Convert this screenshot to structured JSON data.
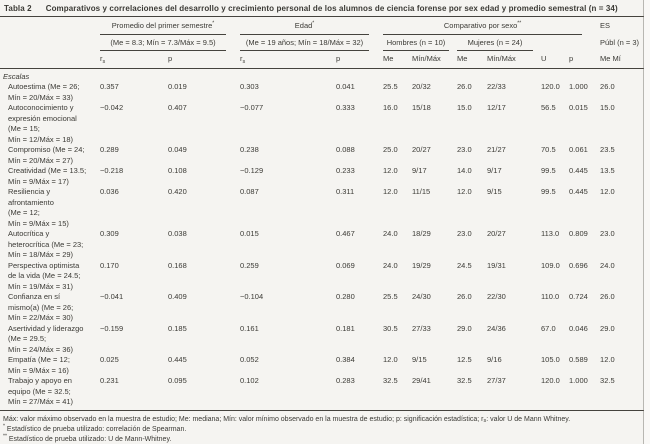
{
  "title": {
    "tag": "Tabla 2",
    "caption": "Comparativos y correlaciones del desarrollo y crecimiento personal de los alumnos de ciencia forense por sex edad y promedio semestral (n = 34)"
  },
  "header": {
    "group1": {
      "label": "Promedio del primer semestre",
      "sup": "*",
      "range": "(Me = 8.3; Mín = 7.3/Máx = 9.5)"
    },
    "group2": {
      "label": "Edad",
      "sup": "*",
      "range": "(Me = 19 años; Mín = 18/Máx = 32)"
    },
    "group3": {
      "label": "Comparativo por sexo",
      "sup": "**",
      "hombres": "Hombres (n = 10)",
      "mujeres": "Mujeres (n = 24)"
    },
    "group4": {
      "label": "ES",
      "sub": "Públ (n = 3)"
    },
    "cols": {
      "rs_base": "r",
      "rs_sub": "s",
      "p": "p",
      "me": "Me",
      "minmax": "Mín/Máx",
      "u": "U",
      "me_mi": "Me Mí"
    }
  },
  "body": {
    "section": "Escalas",
    "rows": [
      {
        "label": "Autoestima (Me = 26;\nMín = 20/Máx = 33)",
        "values": [
          "0.357",
          "0.019",
          "0.303",
          "0.041",
          "25.5",
          "20/32",
          "26.0",
          "22/33",
          "120.0",
          "1.000",
          "26.0"
        ]
      },
      {
        "label": "Autoconocimiento y\nexpresión emocional\n(Me = 15;\nMín = 12/Máx = 18)",
        "values": [
          "−0.042",
          "0.407",
          "−0.077",
          "0.333",
          "16.0",
          "15/18",
          "15.0",
          "12/17",
          "56.5",
          "0.015",
          "15.0"
        ]
      },
      {
        "label": "Compromiso (Me = 24;\nMín = 20/Máx = 27)",
        "values": [
          "0.289",
          "0.049",
          "0.238",
          "0.088",
          "25.0",
          "20/27",
          "23.0",
          "21/27",
          "70.5",
          "0.061",
          "23.5"
        ]
      },
      {
        "label": "Creatividad (Me = 13.5;\nMín = 9/Máx = 17)",
        "values": [
          "−0.218",
          "0.108",
          "−0.129",
          "0.233",
          "12.0",
          "9/17",
          "14.0",
          "9/17",
          "99.5",
          "0.445",
          "13.5"
        ]
      },
      {
        "label": "Resiliencia y\nafrontamiento\n(Me = 12;\nMín = 9/Máx = 15)",
        "values": [
          "0.036",
          "0.420",
          "0.087",
          "0.311",
          "12.0",
          "11/15",
          "12.0",
          "9/15",
          "99.5",
          "0.445",
          "12.0"
        ]
      },
      {
        "label": "Autocrítica y\nheterocrítica (Me = 23;\nMín = 18/Máx = 29)",
        "values": [
          "0.309",
          "0.038",
          "0.015",
          "0.467",
          "24.0",
          "18/29",
          "23.0",
          "20/27",
          "113.0",
          "0.809",
          "23.0"
        ]
      },
      {
        "label": "Perspectiva optimista\nde la vida (Me = 24.5;\nMín = 19/Máx = 31)",
        "values": [
          "0.170",
          "0.168",
          "0.259",
          "0.069",
          "24.0",
          "19/29",
          "24.5",
          "19/31",
          "109.0",
          "0.696",
          "24.0"
        ]
      },
      {
        "label": "Confianza en sí\nmismo(a) (Me = 26;\nMín = 22/Máx = 30)",
        "values": [
          "−0.041",
          "0.409",
          "−0.104",
          "0.280",
          "25.5",
          "24/30",
          "26.0",
          "22/30",
          "110.0",
          "0.724",
          "26.0"
        ]
      },
      {
        "label": "Asertividad y liderazgo\n(Me = 29.5;\nMín = 24/Máx = 36)",
        "values": [
          "−0.159",
          "0.185",
          "0.161",
          "0.181",
          "30.5",
          "27/33",
          "29.0",
          "24/36",
          "67.0",
          "0.046",
          "29.0"
        ]
      },
      {
        "label": "Empatía (Me = 12;\nMín = 9/Máx = 16)",
        "values": [
          "0.025",
          "0.445",
          "0.052",
          "0.384",
          "12.0",
          "9/15",
          "12.5",
          "9/16",
          "105.0",
          "0.589",
          "12.0"
        ]
      },
      {
        "label": "Trabajo y apoyo en\nequipo (Me = 32.5;\nMín = 27/Máx = 41)",
        "values": [
          "0.231",
          "0.095",
          "0.102",
          "0.283",
          "32.5",
          "29/41",
          "32.5",
          "27/37",
          "120.0",
          "1.000",
          "32.5"
        ]
      }
    ]
  },
  "footnotes": {
    "general_pre": "Máx: valor máximo observado en la muestra de estudio; Me: mediana; Mín: valor mínimo observado en la muestra de estudio; p: significación estadística; r",
    "general_sub": "s",
    "general_post": ": valor U de Mann Whitney.",
    "spearman_sup": "*",
    "spearman_text": "Estadístico de prueba utilizado: correlación de Spearman.",
    "mannwhitney_sup": "**",
    "mannwhitney_text": "Estadístico de prueba utilizado: U de Mann-Whitney."
  },
  "colors": {
    "background": "#f5f4f1",
    "text": "#3b3a35",
    "rule": "#45433e"
  }
}
